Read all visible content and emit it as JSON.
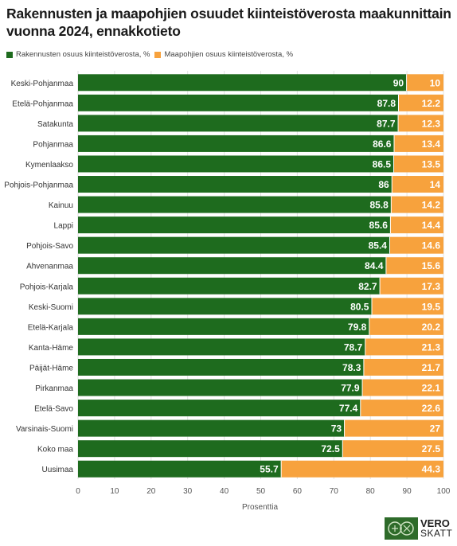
{
  "chart_data": {
    "type": "bar",
    "orientation": "horizontal",
    "stacked": true,
    "title": "Rakennusten ja maapohjien osuudet kiinteistöverosta maakunnittain vuonna 2024, ennakkotieto",
    "xlabel": "Prosenttia",
    "ylabel": "",
    "xlim": [
      0,
      100
    ],
    "xticks": [
      0,
      10,
      20,
      30,
      40,
      50,
      60,
      70,
      80,
      90,
      100
    ],
    "legend_position": "top-left",
    "grid": true,
    "categories": [
      "Keski-Pohjanmaa",
      "Etelä-Pohjanmaa",
      "Satakunta",
      "Pohjanmaa",
      "Kymenlaakso",
      "Pohjois-Pohjanmaa",
      "Kainuu",
      "Lappi",
      "Pohjois-Savo",
      "Ahvenanmaa",
      "Pohjois-Karjala",
      "Keski-Suomi",
      "Etelä-Karjala",
      "Kanta-Häme",
      "Päijät-Häme",
      "Pirkanmaa",
      "Etelä-Savo",
      "Varsinais-Suomi",
      "Koko maa",
      "Uusimaa"
    ],
    "series": [
      {
        "name": "Rakennusten osuus kiinteistöverosta, %",
        "color": "#1e6b1e",
        "values": [
          90,
          87.8,
          87.7,
          86.6,
          86.5,
          86,
          85.8,
          85.6,
          85.4,
          84.4,
          82.7,
          80.5,
          79.8,
          78.7,
          78.3,
          77.9,
          77.4,
          73,
          72.5,
          55.7
        ]
      },
      {
        "name": "Maapohjien osuus kiinteistöverosta, %",
        "color": "#f7a23d",
        "values": [
          10,
          12.2,
          12.3,
          13.4,
          13.5,
          14,
          14.2,
          14.4,
          14.6,
          15.6,
          17.3,
          19.5,
          20.2,
          21.3,
          21.7,
          22.1,
          22.6,
          27,
          27.5,
          44.3
        ]
      }
    ]
  },
  "logo": {
    "line1": "VERO",
    "line2": "SKATT"
  }
}
